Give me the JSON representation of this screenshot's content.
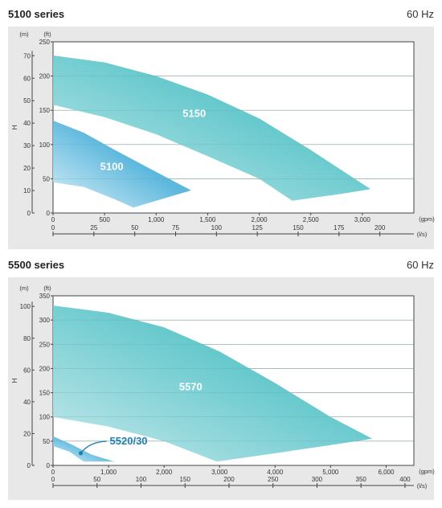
{
  "sections": [
    {
      "title": "5100 series",
      "frequency": "60 Hz"
    },
    {
      "title": "5500 series",
      "frequency": "60 Hz"
    }
  ],
  "chart_data": [
    {
      "type": "area",
      "title": "5100 series",
      "subtitle": "60 Hz",
      "y_left_label": "H",
      "y_left_unit": "(m)",
      "y_right_unit": "(ft)",
      "x_unit_top": "(gpm)",
      "x_unit_bottom": "(l/s)",
      "xlim_gpm": [
        0,
        3500
      ],
      "ylim_ft": [
        0,
        250
      ],
      "xticks_gpm": [
        0,
        500,
        1000,
        1500,
        2000,
        2500,
        3000
      ],
      "xtick_labels_gpm": [
        "0",
        "500",
        "1,000",
        "1,500",
        "2,000",
        "2,500",
        "3,000"
      ],
      "xticks_ls": [
        0,
        25,
        50,
        75,
        100,
        125,
        150,
        175,
        200
      ],
      "yticks_ft": [
        0,
        50,
        100,
        150,
        200,
        250
      ],
      "yticks_m": [
        0,
        10,
        20,
        30,
        40,
        50,
        60,
        70
      ],
      "grid": true,
      "series": [
        {
          "name": "5150",
          "color_light": "#a7dce3",
          "color_dark": "#56c4c8",
          "upper": [
            [
              0,
              230
            ],
            [
              500,
              220
            ],
            [
              1000,
              200
            ],
            [
              1500,
              173
            ],
            [
              2000,
              138
            ],
            [
              2500,
              92
            ],
            [
              3080,
              35
            ]
          ],
          "lower": [
            [
              0,
              158
            ],
            [
              500,
              140
            ],
            [
              1000,
              115
            ],
            [
              1500,
              83
            ],
            [
              2000,
              50
            ],
            [
              2320,
              18
            ],
            [
              2800,
              28
            ],
            [
              3080,
              35
            ]
          ]
        },
        {
          "name": "5100",
          "color_light": "#c6e4f0",
          "color_dark": "#4aaed8",
          "upper": [
            [
              0,
              135
            ],
            [
              300,
              117
            ],
            [
              600,
              92
            ],
            [
              1000,
              60
            ],
            [
              1340,
              33
            ]
          ],
          "lower": [
            [
              0,
              45
            ],
            [
              300,
              38
            ],
            [
              600,
              20
            ],
            [
              780,
              8
            ],
            [
              1000,
              18
            ],
            [
              1340,
              33
            ]
          ]
        }
      ]
    },
    {
      "type": "area",
      "title": "5500 series",
      "subtitle": "60 Hz",
      "y_left_label": "H",
      "y_left_unit": "(m)",
      "y_right_unit": "(ft)",
      "x_unit_top": "(gpm)",
      "x_unit_bottom": "(l/s)",
      "xlim_gpm": [
        0,
        6500
      ],
      "ylim_ft": [
        0,
        350
      ],
      "xticks_gpm": [
        0,
        1000,
        2000,
        3000,
        4000,
        5000,
        6000
      ],
      "xtick_labels_gpm": [
        "0",
        "1,000",
        "2,000",
        "3,000",
        "4,000",
        "5,000",
        "6,000"
      ],
      "xticks_ls": [
        0,
        50,
        100,
        150,
        200,
        250,
        300,
        350,
        400
      ],
      "yticks_ft": [
        0,
        50,
        100,
        150,
        200,
        250,
        300,
        350
      ],
      "yticks_m": [
        0,
        20,
        40,
        60,
        80,
        100
      ],
      "grid": true,
      "series": [
        {
          "name": "5570",
          "color_light": "#a7dce3",
          "color_dark": "#56c4c8",
          "upper": [
            [
              0,
              330
            ],
            [
              1000,
              315
            ],
            [
              2000,
              285
            ],
            [
              3000,
              235
            ],
            [
              4000,
              170
            ],
            [
              5000,
              100
            ],
            [
              5750,
              55
            ]
          ],
          "lower": [
            [
              0,
              100
            ],
            [
              1000,
              80
            ],
            [
              2000,
              50
            ],
            [
              2950,
              8
            ],
            [
              4000,
              25
            ],
            [
              5000,
              42
            ],
            [
              5750,
              55
            ]
          ]
        },
        {
          "name": "5520/30",
          "color_light": "#c6e4f0",
          "color_dark": "#4aaed8",
          "upper": [
            [
              0,
              60
            ],
            [
              300,
              45
            ],
            [
              700,
              22
            ],
            [
              1100,
              8
            ]
          ],
          "lower": [
            [
              0,
              40
            ],
            [
              300,
              28
            ],
            [
              550,
              8
            ],
            [
              1100,
              8
            ]
          ]
        }
      ]
    }
  ]
}
